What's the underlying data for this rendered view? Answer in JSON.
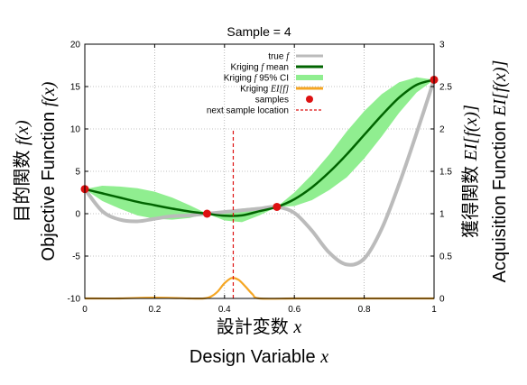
{
  "chart_data": {
    "type": "line",
    "title": "Sample = 4",
    "xlabel": {
      "jp": "設計変数",
      "en": "Design Variable",
      "sym": "x"
    },
    "ylabel_left": {
      "jp": "目的関数",
      "en": "Objective Function",
      "sym": "f(x)"
    },
    "ylabel_right": {
      "jp": "獲得関数",
      "en": "Acquisition Function",
      "sym": "EI[f(x)]"
    },
    "xlim": [
      0,
      1
    ],
    "ylim_left": [
      -10,
      20
    ],
    "ylim_right": [
      0,
      3
    ],
    "x_ticks": [
      "0",
      "0.2",
      "0.4",
      "0.6",
      "0.8",
      "1"
    ],
    "y_left_ticks": [
      "-10",
      "-5",
      "0",
      "5",
      "10",
      "15",
      "20"
    ],
    "y_right_ticks": [
      "0",
      "0.5",
      "1",
      "1.5",
      "2",
      "2.5",
      "3"
    ],
    "grid": true,
    "legend_position": "top-center",
    "legend": [
      {
        "label": "true ",
        "sym": "f",
        "color": "#bbbbbb",
        "style": "line"
      },
      {
        "label": "Kriging ",
        "sym": "f",
        "label2": " mean",
        "color": "#006400",
        "style": "line"
      },
      {
        "label": "Kriging ",
        "sym": "f",
        "label2": " 95% CI",
        "color": "#90ee90",
        "style": "band"
      },
      {
        "label": "Kriging ",
        "sym": "EI[f]",
        "color": "#f5a623",
        "style": "line"
      },
      {
        "label": "samples",
        "color": "#dd1111",
        "style": "dot"
      },
      {
        "label": "next sample location",
        "color": "#dd1111",
        "style": "dash"
      }
    ],
    "samples": {
      "x": [
        0,
        0.35,
        0.55,
        1
      ],
      "y": [
        2.9,
        0,
        0.8,
        15.8
      ]
    },
    "true_f": {
      "x": [
        0,
        0.05,
        0.1,
        0.15,
        0.2,
        0.25,
        0.3,
        0.35,
        0.4,
        0.45,
        0.5,
        0.55,
        0.6,
        0.65,
        0.7,
        0.75,
        0.8,
        0.85,
        0.9,
        0.95,
        1
      ],
      "y": [
        2.9,
        0.3,
        -0.7,
        -0.9,
        -0.6,
        -0.3,
        -0.2,
        0,
        0.2,
        0.4,
        0.6,
        0.8,
        0.1,
        -2,
        -4.6,
        -6,
        -5.3,
        -1.8,
        3.5,
        9.5,
        15.8
      ]
    },
    "kriging_mean": {
      "x": [
        0,
        0.05,
        0.1,
        0.15,
        0.2,
        0.25,
        0.3,
        0.35,
        0.4,
        0.45,
        0.5,
        0.55,
        0.6,
        0.65,
        0.7,
        0.75,
        0.8,
        0.85,
        0.9,
        0.95,
        1
      ],
      "y": [
        2.9,
        2.4,
        1.9,
        1.4,
        1.0,
        0.6,
        0.25,
        0,
        -0.25,
        -0.2,
        0.3,
        0.8,
        1.7,
        3.1,
        4.9,
        7,
        9.3,
        11.6,
        13.7,
        15.2,
        15.8
      ]
    },
    "kriging_ci": {
      "x": [
        0,
        0.05,
        0.1,
        0.15,
        0.2,
        0.25,
        0.3,
        0.35,
        0.4,
        0.45,
        0.5,
        0.55,
        0.6,
        0.65,
        0.7,
        0.75,
        0.8,
        0.85,
        0.9,
        0.95,
        1
      ],
      "upper": [
        2.9,
        3.3,
        3.2,
        3.0,
        2.6,
        1.9,
        1.0,
        0,
        0.3,
        0.6,
        0.8,
        0.8,
        2.5,
        4.6,
        7,
        9.7,
        12.1,
        14.1,
        15.5,
        16.1,
        15.8
      ],
      "lower": [
        2.9,
        1.5,
        0.6,
        -0.2,
        -0.6,
        -0.7,
        -0.5,
        0,
        -0.8,
        -1.0,
        -0.2,
        0.8,
        0.9,
        1.6,
        2.8,
        4.3,
        6.5,
        9.1,
        11.9,
        14.3,
        15.8
      ]
    },
    "ei": {
      "x": [
        0,
        0.1,
        0.2,
        0.3,
        0.34,
        0.36,
        0.38,
        0.4,
        0.42,
        0.44,
        0.46,
        0.48,
        0.5,
        0.6,
        0.7,
        0.8,
        0.9,
        1
      ],
      "y": [
        0,
        0,
        0.01,
        0,
        0,
        0.02,
        0.08,
        0.18,
        0.24,
        0.22,
        0.14,
        0.05,
        0,
        0,
        0,
        0,
        0,
        0
      ]
    },
    "next_sample_x": 0.425
  }
}
